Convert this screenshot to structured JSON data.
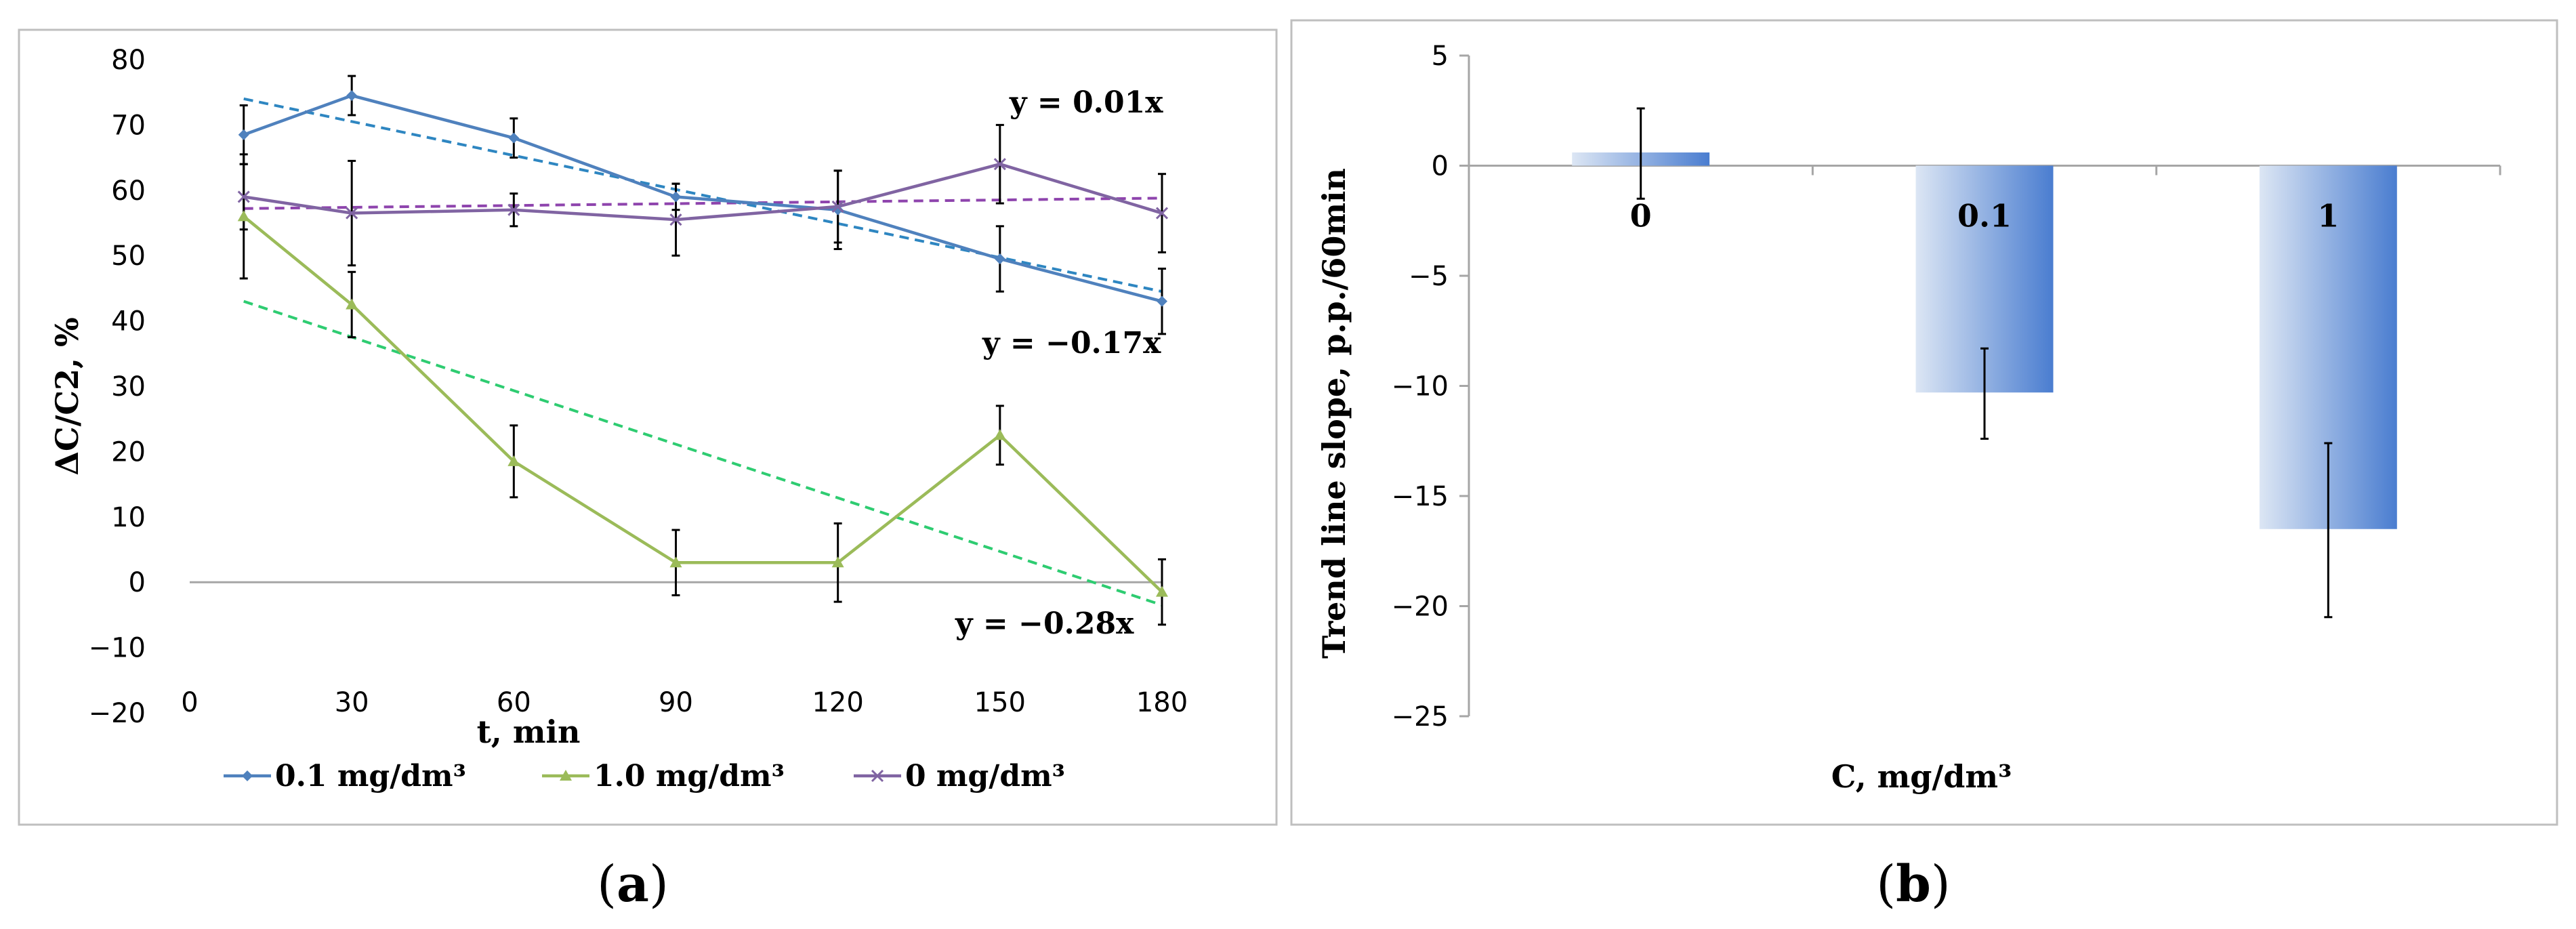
{
  "chart_data": [
    {
      "type": "line",
      "panel": "a",
      "panel_label": "a",
      "xlabel": "t, min",
      "ylabel": "ΔC/C2, %",
      "xlim": [
        0,
        180
      ],
      "ylim": [
        -20,
        80
      ],
      "x_ticks": [
        0,
        30,
        60,
        90,
        120,
        150,
        180
      ],
      "y_ticks": [
        -20,
        -10,
        0,
        10,
        20,
        30,
        40,
        50,
        60,
        70,
        80
      ],
      "x_tick_labels": [
        "0",
        "30",
        "60",
        "90",
        "120",
        "150",
        "180"
      ],
      "y_tick_labels": [
        "−20",
        "−10",
        "0",
        "10",
        "20",
        "30",
        "40",
        "50",
        "60",
        "70",
        "80"
      ],
      "grid": false,
      "legend_position": "bottom",
      "x": [
        10,
        30,
        60,
        90,
        120,
        150,
        180
      ],
      "series": [
        {
          "name": "0.1 mg/dm³",
          "color": "#4F81BD",
          "marker": "diamond",
          "values": [
            68.5,
            74.5,
            68,
            59,
            57,
            49.5,
            43
          ],
          "errors": [
            4.5,
            3,
            3,
            2,
            6,
            5,
            5
          ],
          "trend": {
            "label": "y = −0.17x",
            "start": [
              10,
              74
            ],
            "end": [
              180,
              44.5
            ],
            "color": "#2E86C1"
          }
        },
        {
          "name": "1.0 mg/dm³",
          "color": "#9BBB59",
          "marker": "triangle",
          "values": [
            56,
            42.5,
            18.5,
            3,
            3,
            22.5,
            -1.5
          ],
          "errors": [
            9.5,
            5,
            5.5,
            5,
            6,
            4.5,
            5
          ],
          "trend": {
            "label": "y = −0.28x",
            "start": [
              10,
              43
            ],
            "end": [
              180,
              -3.5
            ],
            "color": "#2ECC71"
          }
        },
        {
          "name": "0 mg/dm³",
          "color": "#8064A2",
          "marker": "x",
          "values": [
            59,
            56.5,
            57,
            55.5,
            57.5,
            64,
            56.5
          ],
          "errors": [
            5,
            8,
            2.5,
            5.5,
            5.5,
            6,
            6
          ],
          "trend": {
            "label": "y = 0.01x",
            "start": [
              10,
              57.2
            ],
            "end": [
              180,
              58.8
            ],
            "color": "#8E44AD"
          }
        }
      ]
    },
    {
      "type": "bar",
      "panel": "b",
      "panel_label": "b",
      "xlabel": "C, mg/dm³",
      "ylabel": "Trend line slope, p.p./60min",
      "categories": [
        "0",
        "0.1",
        "1"
      ],
      "values": [
        0.6,
        -10.3,
        -16.5
      ],
      "errors_upper": [
        2.0,
        2.0,
        3.9
      ],
      "errors_lower": [
        2.1,
        2.1,
        4.0
      ],
      "ylim": [
        -25,
        5
      ],
      "y_ticks": [
        -25,
        -20,
        -15,
        -10,
        -5,
        0,
        5
      ],
      "y_tick_labels": [
        "−25",
        "−20",
        "−15",
        "−10",
        "−5",
        "0",
        "5"
      ],
      "grid": false,
      "bar_gradient": [
        "#DCE6F4",
        "#4A7DD0"
      ]
    }
  ]
}
